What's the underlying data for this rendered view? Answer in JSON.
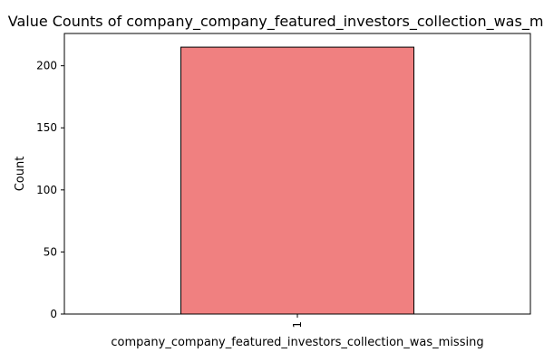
{
  "chart_data": {
    "type": "bar",
    "title": "Value Counts of company_company_featured_investors_collection_was_missing",
    "xlabel": "company_company_featured_investors_collection_was_missing",
    "ylabel": "Count",
    "categories": [
      "1"
    ],
    "values": [
      215
    ],
    "ylim": [
      0,
      226
    ],
    "yticks": [
      0,
      50,
      100,
      150,
      200
    ],
    "grid": false,
    "legend": "none",
    "bar_color": "#f08080",
    "bar_edge_color": "#000000"
  }
}
